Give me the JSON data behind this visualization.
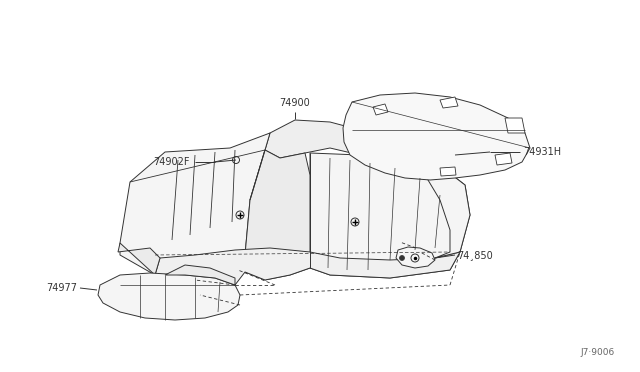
{
  "bg_color": "#ffffff",
  "line_color": "#333333",
  "text_color": "#333333",
  "fill_color": "#f5f5f5",
  "fill_color2": "#ebebeb",
  "diagram_code": "J7·9006",
  "label_74900": "74900",
  "label_74902F": "74902F",
  "label_74931H": "74931H",
  "label_74977": "74977",
  "label_74B850": "74¸850",
  "font_size": 7.0
}
